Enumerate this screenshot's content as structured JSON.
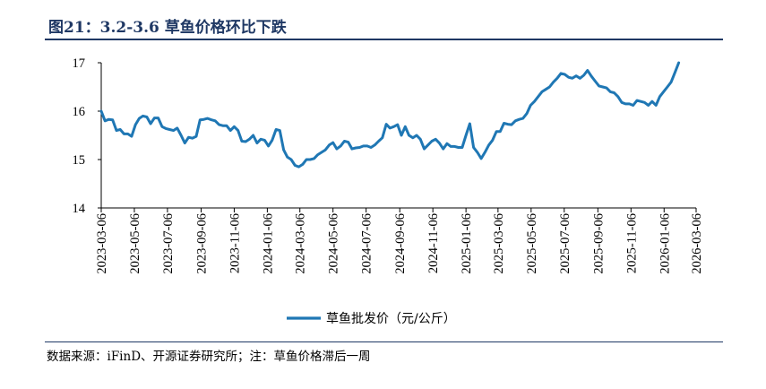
{
  "figure": {
    "title": "图21：3.2-3.6 草鱼价格环比下跌",
    "source_note": "数据来源：iFinD、开源证券研究所；注：草鱼价格滞后一周"
  },
  "colors": {
    "line": "#1f77b4",
    "title": "#1f3864",
    "axis": "#000000"
  },
  "chart_data": {
    "type": "line",
    "title": "",
    "xlabel": "",
    "ylabel": "",
    "ylim": [
      14,
      17
    ],
    "yticks": [
      14,
      15,
      16,
      17
    ],
    "xlim": [
      "2023-03-06",
      "2026-03-06"
    ],
    "xtick_labels": [
      "2023-03-06",
      "2023-05-06",
      "2023-07-06",
      "2023-09-06",
      "2023-11-06",
      "2024-01-06",
      "2024-03-06",
      "2024-05-06",
      "2024-07-06",
      "2024-09-06",
      "2024-11-06",
      "2025-01-06",
      "2025-03-06",
      "2025-05-06",
      "2025-07-06",
      "2025-09-06",
      "2025-11-06",
      "2026-01-06",
      "2026-03-06"
    ],
    "grid": false,
    "legend_position": "bottom-center",
    "series": [
      {
        "name": "草鱼批发价（元/公斤）",
        "points": [
          [
            "2023-03-06",
            16.0
          ],
          [
            "2023-03-13",
            15.8
          ],
          [
            "2023-03-20",
            15.83
          ],
          [
            "2023-03-27",
            15.82
          ],
          [
            "2023-04-03",
            15.6
          ],
          [
            "2023-04-10",
            15.62
          ],
          [
            "2023-04-17",
            15.53
          ],
          [
            "2023-04-24",
            15.53
          ],
          [
            "2023-05-01",
            15.48
          ],
          [
            "2023-05-08",
            15.72
          ],
          [
            "2023-05-15",
            15.85
          ],
          [
            "2023-05-22",
            15.9
          ],
          [
            "2023-05-29",
            15.88
          ],
          [
            "2023-06-05",
            15.74
          ],
          [
            "2023-06-12",
            15.86
          ],
          [
            "2023-06-19",
            15.86
          ],
          [
            "2023-06-26",
            15.68
          ],
          [
            "2023-07-03",
            15.64
          ],
          [
            "2023-07-10",
            15.62
          ],
          [
            "2023-07-17",
            15.6
          ],
          [
            "2023-07-24",
            15.65
          ],
          [
            "2023-07-31",
            15.5
          ],
          [
            "2023-08-07",
            15.34
          ],
          [
            "2023-08-14",
            15.46
          ],
          [
            "2023-08-21",
            15.44
          ],
          [
            "2023-08-28",
            15.48
          ],
          [
            "2023-09-04",
            15.82
          ],
          [
            "2023-09-11",
            15.83
          ],
          [
            "2023-09-18",
            15.85
          ],
          [
            "2023-09-25",
            15.82
          ],
          [
            "2023-10-02",
            15.8
          ],
          [
            "2023-10-09",
            15.72
          ],
          [
            "2023-10-16",
            15.7
          ],
          [
            "2023-10-23",
            15.7
          ],
          [
            "2023-10-30",
            15.6
          ],
          [
            "2023-11-06",
            15.68
          ],
          [
            "2023-11-13",
            15.6
          ],
          [
            "2023-11-20",
            15.38
          ],
          [
            "2023-11-27",
            15.37
          ],
          [
            "2023-12-04",
            15.42
          ],
          [
            "2023-12-11",
            15.5
          ],
          [
            "2023-12-18",
            15.34
          ],
          [
            "2023-12-25",
            15.42
          ],
          [
            "2024-01-01",
            15.4
          ],
          [
            "2024-01-08",
            15.28
          ],
          [
            "2024-01-15",
            15.4
          ],
          [
            "2024-01-22",
            15.62
          ],
          [
            "2024-01-29",
            15.6
          ],
          [
            "2024-02-05",
            15.2
          ],
          [
            "2024-02-12",
            15.05
          ],
          [
            "2024-02-19",
            15.0
          ],
          [
            "2024-02-26",
            14.88
          ],
          [
            "2024-03-04",
            14.85
          ],
          [
            "2024-03-11",
            14.9
          ],
          [
            "2024-03-18",
            15.0
          ],
          [
            "2024-03-25",
            15.0
          ],
          [
            "2024-04-01",
            15.02
          ],
          [
            "2024-04-08",
            15.1
          ],
          [
            "2024-04-15",
            15.15
          ],
          [
            "2024-04-22",
            15.2
          ],
          [
            "2024-04-29",
            15.3
          ],
          [
            "2024-05-06",
            15.35
          ],
          [
            "2024-05-13",
            15.22
          ],
          [
            "2024-05-20",
            15.28
          ],
          [
            "2024-05-27",
            15.38
          ],
          [
            "2024-06-03",
            15.36
          ],
          [
            "2024-06-10",
            15.22
          ],
          [
            "2024-06-17",
            15.24
          ],
          [
            "2024-06-24",
            15.25
          ],
          [
            "2024-07-01",
            15.28
          ],
          [
            "2024-07-08",
            15.28
          ],
          [
            "2024-07-15",
            15.25
          ],
          [
            "2024-07-22",
            15.3
          ],
          [
            "2024-07-29",
            15.38
          ],
          [
            "2024-08-05",
            15.45
          ],
          [
            "2024-08-12",
            15.73
          ],
          [
            "2024-08-19",
            15.65
          ],
          [
            "2024-08-26",
            15.68
          ],
          [
            "2024-09-02",
            15.72
          ],
          [
            "2024-09-09",
            15.5
          ],
          [
            "2024-09-16",
            15.68
          ],
          [
            "2024-09-23",
            15.5
          ],
          [
            "2024-09-30",
            15.45
          ],
          [
            "2024-10-07",
            15.5
          ],
          [
            "2024-10-14",
            15.42
          ],
          [
            "2024-10-21",
            15.22
          ],
          [
            "2024-10-28",
            15.3
          ],
          [
            "2024-11-04",
            15.38
          ],
          [
            "2024-11-11",
            15.42
          ],
          [
            "2024-11-18",
            15.34
          ],
          [
            "2024-11-25",
            15.22
          ],
          [
            "2024-12-02",
            15.33
          ],
          [
            "2024-12-09",
            15.27
          ],
          [
            "2024-12-16",
            15.27
          ],
          [
            "2024-12-23",
            15.25
          ],
          [
            "2024-12-30",
            15.25
          ],
          [
            "2025-01-06",
            15.5
          ],
          [
            "2025-01-13",
            15.74
          ],
          [
            "2025-01-20",
            15.25
          ],
          [
            "2025-01-27",
            15.15
          ],
          [
            "2025-02-03",
            15.02
          ],
          [
            "2025-02-10",
            15.15
          ],
          [
            "2025-02-17",
            15.3
          ],
          [
            "2025-02-24",
            15.4
          ],
          [
            "2025-03-03",
            15.58
          ],
          [
            "2025-03-10",
            15.58
          ],
          [
            "2025-03-17",
            15.75
          ],
          [
            "2025-03-24",
            15.73
          ],
          [
            "2025-03-31",
            15.72
          ],
          [
            "2025-04-07",
            15.8
          ],
          [
            "2025-04-14",
            15.83
          ],
          [
            "2025-04-21",
            15.85
          ],
          [
            "2025-04-28",
            15.95
          ],
          [
            "2025-05-05",
            16.12
          ],
          [
            "2025-05-12",
            16.2
          ],
          [
            "2025-05-19",
            16.3
          ],
          [
            "2025-05-26",
            16.4
          ],
          [
            "2025-06-02",
            16.45
          ],
          [
            "2025-06-09",
            16.5
          ],
          [
            "2025-06-16",
            16.6
          ],
          [
            "2025-06-23",
            16.68
          ],
          [
            "2025-06-30",
            16.78
          ],
          [
            "2025-07-07",
            16.76
          ],
          [
            "2025-07-14",
            16.7
          ],
          [
            "2025-07-21",
            16.68
          ],
          [
            "2025-07-28",
            16.73
          ],
          [
            "2025-08-04",
            16.68
          ],
          [
            "2025-08-11",
            16.74
          ],
          [
            "2025-08-18",
            16.84
          ],
          [
            "2025-08-25",
            16.72
          ],
          [
            "2025-09-01",
            16.62
          ],
          [
            "2025-09-08",
            16.52
          ],
          [
            "2025-09-15",
            16.5
          ],
          [
            "2025-09-22",
            16.48
          ],
          [
            "2025-09-29",
            16.4
          ],
          [
            "2025-10-06",
            16.38
          ],
          [
            "2025-10-13",
            16.3
          ],
          [
            "2025-10-20",
            16.18
          ],
          [
            "2025-10-27",
            16.15
          ],
          [
            "2025-11-03",
            16.15
          ],
          [
            "2025-11-10",
            16.12
          ],
          [
            "2025-11-17",
            16.22
          ],
          [
            "2025-11-24",
            16.2
          ],
          [
            "2025-12-01",
            16.18
          ],
          [
            "2025-12-08",
            16.12
          ],
          [
            "2025-12-15",
            16.2
          ],
          [
            "2025-12-22",
            16.12
          ],
          [
            "2025-12-29",
            16.3
          ],
          [
            "2026-01-05",
            16.4
          ],
          [
            "2026-01-12",
            16.5
          ],
          [
            "2026-01-19",
            16.6
          ],
          [
            "2026-01-26",
            16.8
          ],
          [
            "2026-02-02",
            17.0
          ]
        ]
      }
    ]
  }
}
